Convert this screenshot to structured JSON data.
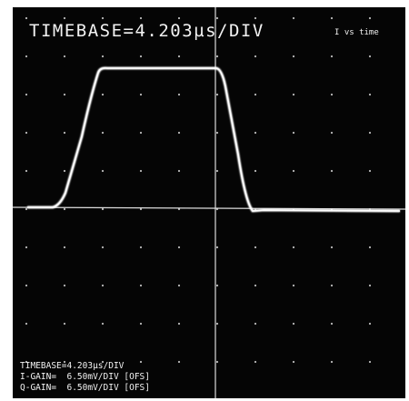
{
  "screen": {
    "header": {
      "timebase": "TIMEBASE=4.203µs/DIV",
      "caption": "I vs time"
    },
    "footer": {
      "lines": [
        "TIMEBASE=4.203µs/DIV",
        "I-GAIN=  6.50mV/DIV [OFS]",
        "Q-GAIN=  6.50mV/DIV [OFS]"
      ]
    }
  }
}
